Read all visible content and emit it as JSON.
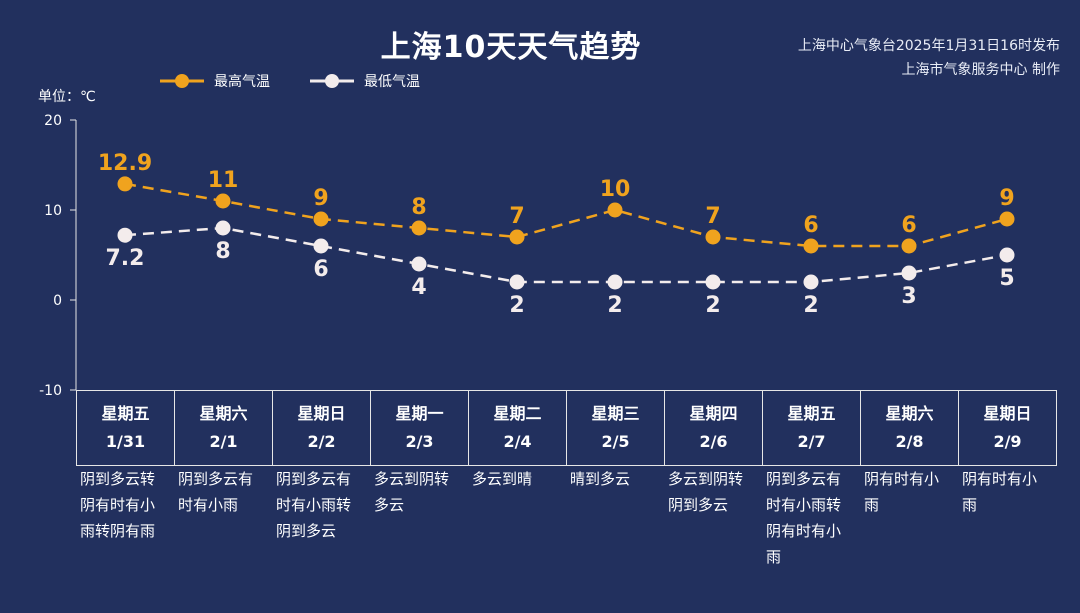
{
  "header": {
    "title": "上海10天天气趋势",
    "source_line1": "上海中心气象台2025年1月31日16时发布",
    "source_line2": "上海市气象服务中心 制作"
  },
  "legend": {
    "high_label": "最高气温",
    "low_label": "最低气温"
  },
  "unit_label": "单位：℃",
  "colors": {
    "background": "#22305e",
    "high": "#f0a31e",
    "low": "#f3ecec",
    "axis": "#e6e6e6"
  },
  "days": [
    {
      "weekday": "星期五",
      "date": "1/31",
      "condition": "阴到多云转\n阴有时有小\n雨转阴有雨"
    },
    {
      "weekday": "星期六",
      "date": "2/1",
      "condition": "阴到多云有\n时有小雨"
    },
    {
      "weekday": "星期日",
      "date": "2/2",
      "condition": "阴到多云有\n时有小雨转\n阴到多云"
    },
    {
      "weekday": "星期一",
      "date": "2/3",
      "condition": "多云到阴转\n多云"
    },
    {
      "weekday": "星期二",
      "date": "2/4",
      "condition": "多云到晴"
    },
    {
      "weekday": "星期三",
      "date": "2/5",
      "condition": "晴到多云"
    },
    {
      "weekday": "星期四",
      "date": "2/6",
      "condition": "多云到阴转\n阴到多云"
    },
    {
      "weekday": "星期五",
      "date": "2/7",
      "condition": "阴到多云有\n时有小雨转\n阴有时有小\n雨"
    },
    {
      "weekday": "星期六",
      "date": "2/8",
      "condition": "阴有时有小\n雨"
    },
    {
      "weekday": "星期日",
      "date": "2/9",
      "condition": "阴有时有小\n雨"
    }
  ],
  "chart_data": {
    "type": "line",
    "title": "上海10天天气趋势",
    "ylabel": "单位：℃",
    "x": [
      "1/31",
      "2/1",
      "2/2",
      "2/3",
      "2/4",
      "2/5",
      "2/6",
      "2/7",
      "2/8",
      "2/9"
    ],
    "ylim": [
      -10,
      20
    ],
    "yticks": [
      20,
      10,
      0,
      -10
    ],
    "grid": false,
    "legend_position": "top-left",
    "series": [
      {
        "name": "最高气温",
        "values": [
          12.9,
          11,
          9,
          8,
          7,
          10,
          7,
          6,
          6,
          9
        ],
        "labels": [
          "12.9",
          "11",
          "9",
          "8",
          "7",
          "10",
          "7",
          "6",
          "6",
          "9"
        ]
      },
      {
        "name": "最低气温",
        "values": [
          7.2,
          8,
          6,
          4,
          2,
          2,
          2,
          2,
          3,
          5
        ],
        "labels": [
          "7.2",
          "8",
          "6",
          "4",
          "2",
          "2",
          "2",
          "2",
          "3",
          "5"
        ]
      }
    ]
  }
}
